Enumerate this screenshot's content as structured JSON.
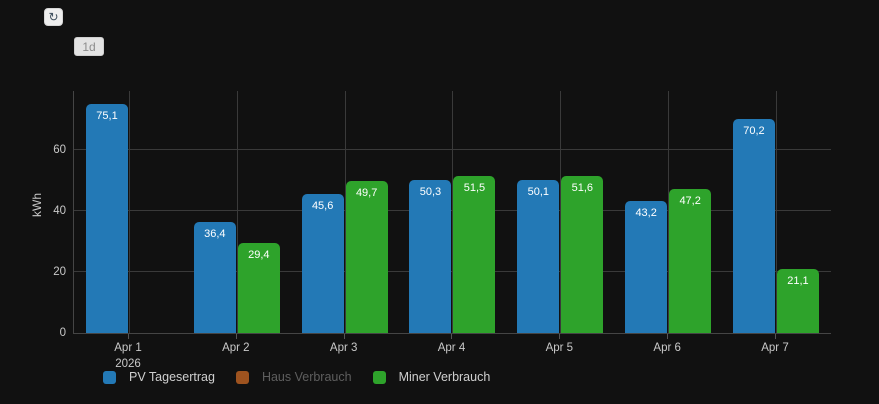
{
  "controls": {
    "refresh_icon": "↻",
    "range_button_label": "1d"
  },
  "chart_data": {
    "type": "bar",
    "title": "",
    "xlabel": "",
    "ylabel": "kWh",
    "yticks": [
      0,
      20,
      40,
      60
    ],
    "ylim": [
      0,
      79.3
    ],
    "grid": true,
    "legend_position": "bottom",
    "categories": [
      "Apr 1",
      "Apr 2",
      "Apr 3",
      "Apr 4",
      "Apr 5",
      "Apr 6",
      "Apr 7"
    ],
    "x_secondary_label": {
      "index": 0,
      "text": "2026"
    },
    "series": [
      {
        "name": "PV Tagesertrag",
        "color": "#2379b6",
        "visible": true,
        "values": [
          75.1,
          36.4,
          45.6,
          50.3,
          50.1,
          43.2,
          70.2
        ],
        "labels": [
          "75,1",
          "36,4",
          "45,6",
          "50,3",
          "50,1",
          "43,2",
          "70,2"
        ]
      },
      {
        "name": "Haus Verbrauch",
        "color": "#9e531f",
        "visible": false,
        "values": [
          null,
          null,
          null,
          null,
          null,
          null,
          null
        ],
        "labels": [
          "",
          "",
          "",
          "",
          "",
          "",
          ""
        ]
      },
      {
        "name": "Miner Verbrauch",
        "color": "#2ea32b",
        "visible": true,
        "values": [
          null,
          29.4,
          49.7,
          51.5,
          51.6,
          47.2,
          21.1
        ],
        "labels": [
          "",
          "29,4",
          "49,7",
          "51,5",
          "51,6",
          "47,2",
          "21,1"
        ]
      }
    ]
  },
  "colors": {
    "background": "#111111",
    "grid": "#3a3a3a",
    "axis": "#454545",
    "axis_text": "#c9c9c9",
    "bar_value_text": "#ffffff",
    "legend_text": "#cfcfcf",
    "legend_text_disabled": "#5e5e5e"
  }
}
